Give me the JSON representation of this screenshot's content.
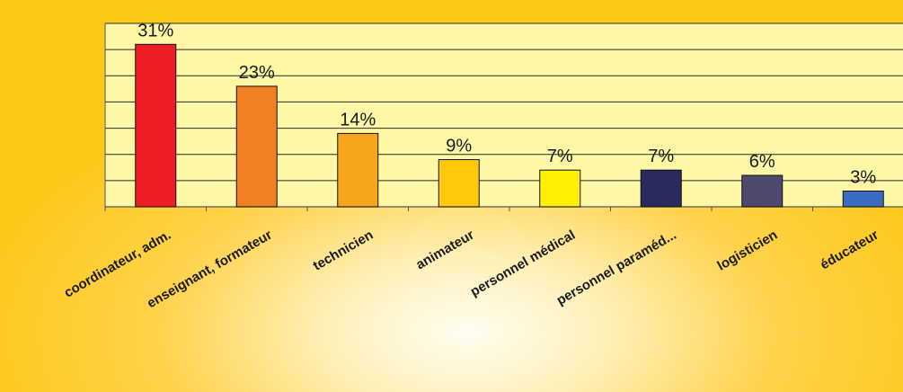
{
  "chart_data": {
    "type": "bar",
    "title": "",
    "xlabel": "",
    "ylabel": "",
    "categories": [
      "coordinateur, adm.",
      "enseignant, formateur",
      "technicien",
      "animateur",
      "personnel médical",
      "personnel paraméd...",
      "logisticien",
      "éducateur"
    ],
    "values": [
      31,
      23,
      14,
      9,
      7,
      7,
      6,
      3
    ],
    "value_labels": [
      "31%",
      "23%",
      "14%",
      "9%",
      "7%",
      "7%",
      "6%",
      "3%"
    ],
    "ylim": [
      0,
      35
    ],
    "y_gridline_step": 5,
    "grid": true,
    "legend": "none",
    "plot_background": "#fdf7a6",
    "colors": [
      "#ee1c24",
      "#f18022",
      "#f7a51c",
      "#ffc90a",
      "#ffef00",
      "#2b2a5c",
      "#4f4970",
      "#3b6cbf"
    ]
  }
}
